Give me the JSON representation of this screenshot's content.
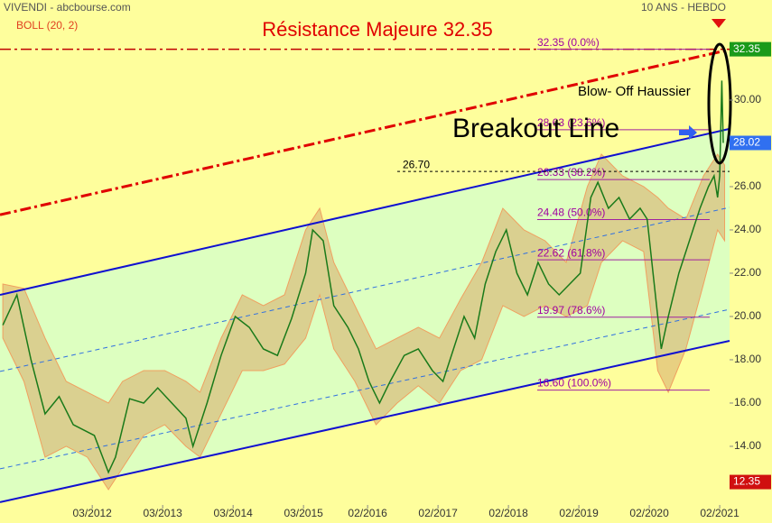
{
  "chart_data": {
    "type": "line",
    "title": "Résistance Majeure 32.35",
    "source": "VIVENDI - abcbourse.com",
    "period": "10 ANS - HEBDO",
    "indicator": "BOLL (20, 2)",
    "annotations": [
      "Blow- Off Haussier",
      "Breakout Line"
    ],
    "xlim": [
      2010.86,
      2021.22
    ],
    "ylim": [
      11.29,
      34.625
    ],
    "xticks": [
      {
        "value": 2012.17,
        "label": "03/2012"
      },
      {
        "value": 2013.17,
        "label": "03/2013"
      },
      {
        "value": 2014.17,
        "label": "03/2014"
      },
      {
        "value": 2015.17,
        "label": "03/2015"
      },
      {
        "value": 2016.08,
        "label": "02/2016"
      },
      {
        "value": 2017.08,
        "label": "02/2017"
      },
      {
        "value": 2018.08,
        "label": "02/2018"
      },
      {
        "value": 2019.08,
        "label": "02/2019"
      },
      {
        "value": 2020.08,
        "label": "02/2020"
      },
      {
        "value": 2021.08,
        "label": "02/2021"
      }
    ],
    "yticks": [
      {
        "value": 14,
        "label": "14.00"
      },
      {
        "value": 16,
        "label": "16.00"
      },
      {
        "value": 18,
        "label": "18.00"
      },
      {
        "value": 20,
        "label": "20.00"
      },
      {
        "value": 22,
        "label": "22.00"
      },
      {
        "value": 24,
        "label": "24.00"
      },
      {
        "value": 26,
        "label": "26.00"
      },
      {
        "value": 28,
        "label": "28.00"
      },
      {
        "value": 30,
        "label": "30.00"
      }
    ],
    "x": [
      2010.9,
      2011.1,
      2011.3,
      2011.5,
      2011.7,
      2011.9,
      2012.2,
      2012.4,
      2012.5,
      2012.7,
      2012.9,
      2013.1,
      2013.3,
      2013.5,
      2013.6,
      2013.8,
      2014.0,
      2014.2,
      2014.4,
      2014.6,
      2014.8,
      2015.0,
      2015.2,
      2015.3,
      2015.45,
      2015.6,
      2015.8,
      2015.95,
      2016.1,
      2016.25,
      2016.4,
      2016.6,
      2016.8,
      2017.0,
      2017.15,
      2017.3,
      2017.45,
      2017.6,
      2017.75,
      2017.9,
      2018.05,
      2018.2,
      2018.35,
      2018.5,
      2018.65,
      2018.8,
      2018.95,
      2019.1,
      2019.25,
      2019.35,
      2019.5,
      2019.65,
      2019.8,
      2019.95,
      2020.05,
      2020.15,
      2020.25,
      2020.35,
      2020.5,
      2020.65,
      2020.8,
      2020.92,
      2021.0,
      2021.05,
      2021.08,
      2021.11,
      2021.13
    ],
    "series": [
      {
        "color": "#1a7a1a",
        "values": [
          19.6,
          21.0,
          18.0,
          15.5,
          16.3,
          15.0,
          14.5,
          12.8,
          13.5,
          16.2,
          16.0,
          16.7,
          16.0,
          15.3,
          14.0,
          16.0,
          18.2,
          20.0,
          19.5,
          18.5,
          18.2,
          19.9,
          22.0,
          24.0,
          23.5,
          20.5,
          19.5,
          18.5,
          17.0,
          16.0,
          17.0,
          18.2,
          18.5,
          17.5,
          17.0,
          18.5,
          20.0,
          19.0,
          21.5,
          23.0,
          24.0,
          22.0,
          21.0,
          22.5,
          21.5,
          21.0,
          21.5,
          22.0,
          25.5,
          26.2,
          25.0,
          25.5,
          24.5,
          25.0,
          24.5,
          21.5,
          18.5,
          20.0,
          22.0,
          23.5,
          25.0,
          26.0,
          26.5,
          25.5,
          26.5,
          30.9,
          28.02
        ]
      }
    ],
    "bollinger": {
      "color": "#d8b070",
      "x": [
        2010.9,
        2011.2,
        2011.5,
        2011.8,
        2012.1,
        2012.4,
        2012.6,
        2012.9,
        2013.2,
        2013.5,
        2013.7,
        2014.0,
        2014.3,
        2014.6,
        2014.9,
        2015.2,
        2015.4,
        2015.6,
        2015.9,
        2016.2,
        2016.5,
        2016.8,
        2017.1,
        2017.4,
        2017.7,
        2018.0,
        2018.3,
        2018.6,
        2018.9,
        2019.2,
        2019.4,
        2019.7,
        2020.0,
        2020.2,
        2020.35,
        2020.6,
        2020.85,
        2021.05,
        2021.15
      ],
      "upper": [
        21.5,
        21.3,
        19.0,
        17.0,
        16.5,
        16.0,
        17.0,
        17.5,
        17.5,
        17.0,
        16.5,
        19.0,
        21.0,
        20.5,
        21.0,
        24.0,
        25.0,
        22.5,
        20.5,
        18.5,
        19.0,
        19.5,
        19.0,
        20.8,
        22.5,
        25.0,
        24.0,
        23.5,
        22.5,
        26.0,
        27.5,
        26.5,
        26.0,
        25.5,
        25.0,
        24.5,
        26.5,
        27.5,
        27.0
      ],
      "lower": [
        19.0,
        17.0,
        13.5,
        14.0,
        13.5,
        12.0,
        13.0,
        14.5,
        15.0,
        14.0,
        13.5,
        15.5,
        17.5,
        17.5,
        17.8,
        19.0,
        21.0,
        18.5,
        17.0,
        15.0,
        16.0,
        16.8,
        16.0,
        17.5,
        18.0,
        20.5,
        20.0,
        20.5,
        20.0,
        20.5,
        22.5,
        23.5,
        23.0,
        17.5,
        16.5,
        18.5,
        21.5,
        24.0,
        23.5
      ]
    },
    "trend_lines": [
      {
        "x": [
          2010.86,
          2021.22
        ],
        "values": [
          24.7,
          32.33
        ],
        "color": "#e00000",
        "style": "dashdot",
        "width": 3
      },
      {
        "x": [
          2010.86,
          2021.22
        ],
        "values": [
          32.35,
          32.35
        ],
        "color": "#c00000",
        "style": "dashdot",
        "width": 1.5
      },
      {
        "x": [
          2010.86,
          2021.22
        ],
        "values": [
          21.0,
          28.67
        ],
        "color": "#1010d0",
        "style": "solid",
        "width": 2
      },
      {
        "x": [
          2010.86,
          2021.22
        ],
        "values": [
          17.46,
          25.04
        ],
        "color": "#3070e0",
        "style": "dashed",
        "width": 1
      },
      {
        "x": [
          2010.86,
          2021.22
        ],
        "values": [
          12.96,
          20.33
        ],
        "color": "#3070e0",
        "style": "dashed",
        "width": 1
      },
      {
        "x": [
          2010.86,
          2021.22
        ],
        "values": [
          11.42,
          18.875
        ],
        "color": "#1010d0",
        "style": "solid",
        "width": 2
      }
    ],
    "support_line": {
      "value": 26.7,
      "label": "26.70"
    },
    "fib_levels": [
      {
        "value": 32.35,
        "label": "32.35  (0.0%)"
      },
      {
        "value": 28.63,
        "label": "28.63 (23.6%)"
      },
      {
        "value": 26.33,
        "label": "26.33  (38.2%)"
      },
      {
        "value": 24.48,
        "label": "24.48  (50.0%)"
      },
      {
        "value": 22.62,
        "label": "22.62  (61.8%)"
      },
      {
        "value": 19.97,
        "label": "19.97  (78.6%)"
      },
      {
        "value": 16.6,
        "label": "16.60  (100.0%)"
      }
    ],
    "price_labels": [
      {
        "value": 32.35,
        "label": "32.35",
        "color": "#1a9a1a"
      },
      {
        "value": 28.02,
        "label": "28.02",
        "color": "#3070f0"
      },
      {
        "value": 12.35,
        "label": "12.35",
        "color": "#d01010"
      }
    ]
  }
}
